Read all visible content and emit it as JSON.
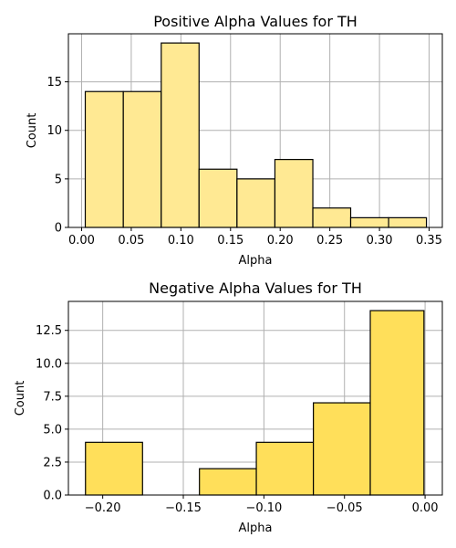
{
  "chart_data": [
    {
      "type": "bar",
      "title": "Positive Alpha Values for TH",
      "xlabel": "Alpha",
      "ylabel": "Count",
      "color": "#ffe993",
      "grid": true,
      "xlim": [
        -0.0133,
        0.3633
      ],
      "ylim": [
        0,
        19.95
      ],
      "xticks": [
        "0.00",
        "0.05",
        "0.10",
        "0.15",
        "0.20",
        "0.25",
        "0.30",
        "0.35"
      ],
      "yticks": [
        "0",
        "5",
        "10",
        "15"
      ],
      "bins": [
        {
          "x0": 0.0037,
          "x1": 0.042,
          "count": 14
        },
        {
          "x0": 0.042,
          "x1": 0.0802,
          "count": 14
        },
        {
          "x0": 0.0802,
          "x1": 0.1183,
          "count": 19
        },
        {
          "x0": 0.1183,
          "x1": 0.1565,
          "count": 6
        },
        {
          "x0": 0.1565,
          "x1": 0.1947,
          "count": 5
        },
        {
          "x0": 0.1947,
          "x1": 0.2329,
          "count": 7
        },
        {
          "x0": 0.2329,
          "x1": 0.271,
          "count": 2
        },
        {
          "x0": 0.271,
          "x1": 0.3092,
          "count": 1
        },
        {
          "x0": 0.3092,
          "x1": 0.3473,
          "count": 1
        }
      ]
    },
    {
      "type": "bar",
      "title": "Negative Alpha Values for TH",
      "xlabel": "Alpha",
      "ylabel": "Count",
      "color": "#ffdf5a",
      "grid": true,
      "xlim": [
        -0.2213,
        0.0107
      ],
      "ylim": [
        0,
        14.7
      ],
      "xticks": [
        "−0.20",
        "−0.15",
        "−0.10",
        "−0.05",
        "0.00"
      ],
      "yticks": [
        "0.0",
        "2.5",
        "5.0",
        "7.5",
        "10.0",
        "12.5"
      ],
      "bins": [
        {
          "x0": -0.2107,
          "x1": -0.1753,
          "count": 4
        },
        {
          "x0": -0.1753,
          "x1": -0.14,
          "count": 0
        },
        {
          "x0": -0.14,
          "x1": -0.1047,
          "count": 2
        },
        {
          "x0": -0.1047,
          "x1": -0.0693,
          "count": 4
        },
        {
          "x0": -0.0693,
          "x1": -0.034,
          "count": 7
        },
        {
          "x0": -0.034,
          "x1": -0.0007,
          "count": 14
        }
      ]
    }
  ]
}
